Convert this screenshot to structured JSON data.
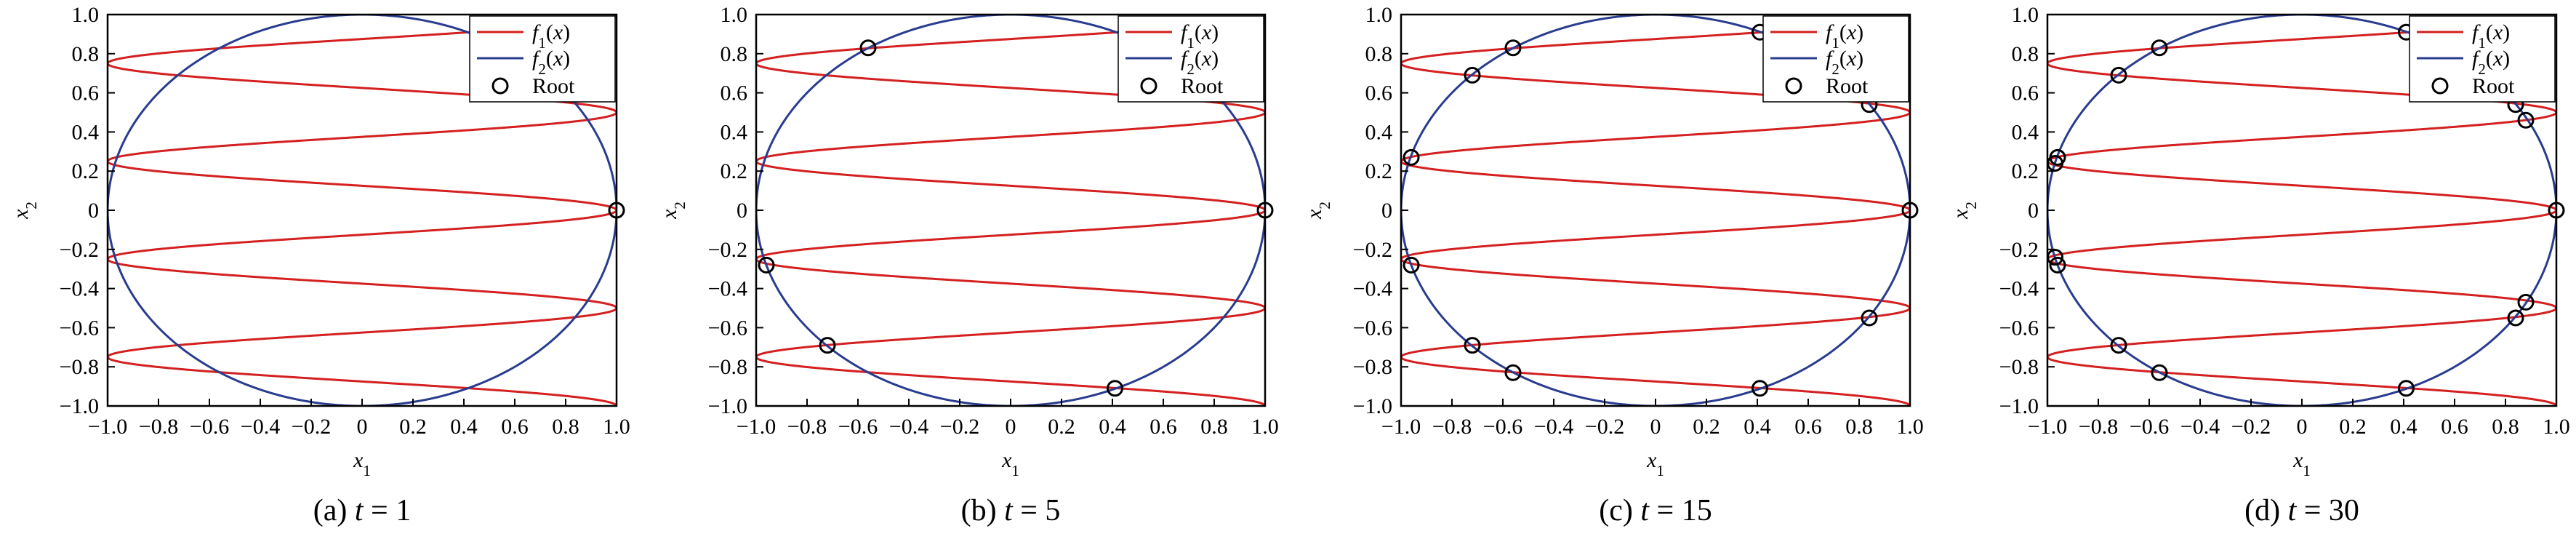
{
  "figure": {
    "panels": [
      {
        "caption_prefix": "(a) ",
        "caption_var": "t",
        "caption_eq": " = ",
        "caption_value": "1"
      },
      {
        "caption_prefix": "(b) ",
        "caption_var": "t",
        "caption_eq": " = ",
        "caption_value": "5"
      },
      {
        "caption_prefix": "(c) ",
        "caption_var": "t",
        "caption_eq": " = ",
        "caption_value": "15"
      },
      {
        "caption_prefix": "(d) ",
        "caption_var": "t",
        "caption_eq": " = ",
        "caption_value": "30"
      }
    ]
  },
  "chart_data": [
    {
      "type": "line",
      "caption": "(a) t = 1",
      "xlabel": "x1",
      "ylabel": "x2",
      "xlim": [
        -1,
        1
      ],
      "ylim": [
        -1,
        1
      ],
      "xticks": [
        "−1.0",
        "−0.8",
        "−0.6",
        "−0.4",
        "−0.2",
        "0",
        "0.2",
        "0.4",
        "0.6",
        "0.8",
        "1.0"
      ],
      "yticks": [
        "1.0",
        "0.8",
        "0.6",
        "0.4",
        "0.2",
        "0",
        "−0.2",
        "−0.4",
        "−0.6",
        "−0.8",
        "−1.0"
      ],
      "legend": {
        "position": "top-right",
        "entries": [
          "f1(x)",
          "f2(x)",
          "Root"
        ]
      },
      "series": [
        {
          "name": "f1(x)",
          "color": "#d42020",
          "curve": "x1 = cos(2*pi*x2/0.5)"
        },
        {
          "name": "f2(x)",
          "color": "#2a3c8f",
          "curve": "x1^2 + x2^2 = 1"
        }
      ],
      "roots": [
        [
          1.0,
          0.0
        ]
      ]
    },
    {
      "type": "line",
      "caption": "(b) t = 5",
      "xlabel": "x1",
      "ylabel": "x2",
      "xlim": [
        -1,
        1
      ],
      "ylim": [
        -1,
        1
      ],
      "xticks": [
        "−1.0",
        "−0.8",
        "−0.6",
        "−0.4",
        "−0.2",
        "0",
        "0.2",
        "0.4",
        "0.6",
        "0.8",
        "1.0"
      ],
      "yticks": [
        "1.0",
        "0.8",
        "0.6",
        "0.4",
        "0.2",
        "0",
        "−0.2",
        "−0.4",
        "−0.6",
        "−0.8",
        "−1.0"
      ],
      "legend": {
        "position": "top-right",
        "entries": [
          "f1(x)",
          "f2(x)",
          "Root"
        ]
      },
      "series": [
        {
          "name": "f1(x)",
          "color": "#d42020",
          "curve": "x1 = cos(2*pi*x2/0.5)"
        },
        {
          "name": "f2(x)",
          "color": "#2a3c8f",
          "curve": "x1^2 + x2^2 = 1"
        }
      ],
      "roots": [
        [
          1.0,
          0.0
        ],
        [
          -0.96,
          -0.28
        ],
        [
          -0.72,
          -0.69
        ],
        [
          -0.56,
          0.83
        ],
        [
          0.41,
          -0.91
        ]
      ]
    },
    {
      "type": "line",
      "caption": "(c) t = 15",
      "xlabel": "x1",
      "ylabel": "x2",
      "xlim": [
        -1,
        1
      ],
      "ylim": [
        -1,
        1
      ],
      "xticks": [
        "−1.0",
        "−0.8",
        "−0.6",
        "−0.4",
        "−0.2",
        "0",
        "0.2",
        "0.4",
        "0.6",
        "0.8",
        "1.0"
      ],
      "yticks": [
        "1.0",
        "0.8",
        "0.6",
        "0.4",
        "0.2",
        "0",
        "−0.2",
        "−0.4",
        "−0.6",
        "−0.8",
        "−1.0"
      ],
      "legend": {
        "position": "top-right",
        "entries": [
          "f1(x)",
          "f2(x)",
          "Root"
        ]
      },
      "series": [
        {
          "name": "f1(x)",
          "color": "#d42020",
          "curve": "x1 = cos(2*pi*x2/0.5)"
        },
        {
          "name": "f2(x)",
          "color": "#2a3c8f",
          "curve": "x1^2 + x2^2 = 1"
        }
      ],
      "roots": [
        [
          1.0,
          0.0
        ],
        [
          -0.96,
          0.27
        ],
        [
          -0.96,
          -0.28
        ],
        [
          -0.72,
          0.69
        ],
        [
          -0.72,
          -0.69
        ],
        [
          -0.56,
          0.83
        ],
        [
          -0.56,
          -0.83
        ],
        [
          0.41,
          0.91
        ],
        [
          0.41,
          -0.91
        ],
        [
          0.84,
          0.54
        ],
        [
          0.84,
          -0.55
        ]
      ]
    },
    {
      "type": "line",
      "caption": "(d) t = 30",
      "xlabel": "x1",
      "ylabel": "x2",
      "xlim": [
        -1,
        1
      ],
      "ylim": [
        -1,
        1
      ],
      "xticks": [
        "−1.0",
        "−0.8",
        "−0.6",
        "−0.4",
        "−0.2",
        "0",
        "0.2",
        "0.4",
        "0.6",
        "0.8",
        "1.0"
      ],
      "yticks": [
        "1.0",
        "0.8",
        "0.6",
        "0.4",
        "0.2",
        "0",
        "−0.2",
        "−0.4",
        "−0.6",
        "−0.8",
        "−1.0"
      ],
      "legend": {
        "position": "top-right",
        "entries": [
          "f1(x)",
          "f2(x)",
          "Root"
        ]
      },
      "series": [
        {
          "name": "f1(x)",
          "color": "#d42020",
          "curve": "x1 = cos(2*pi*x2/0.5)"
        },
        {
          "name": "f2(x)",
          "color": "#2a3c8f",
          "curve": "x1^2 + x2^2 = 1"
        }
      ],
      "roots": [
        [
          1.0,
          0.0
        ],
        [
          -0.97,
          0.24
        ],
        [
          -0.96,
          0.27
        ],
        [
          -0.97,
          -0.24
        ],
        [
          -0.96,
          -0.28
        ],
        [
          -0.72,
          0.69
        ],
        [
          -0.72,
          -0.69
        ],
        [
          -0.56,
          0.83
        ],
        [
          -0.56,
          -0.83
        ],
        [
          0.41,
          0.91
        ],
        [
          0.41,
          -0.91
        ],
        [
          0.84,
          0.54
        ],
        [
          0.88,
          0.46
        ],
        [
          0.84,
          -0.55
        ],
        [
          0.88,
          -0.47
        ]
      ]
    }
  ]
}
